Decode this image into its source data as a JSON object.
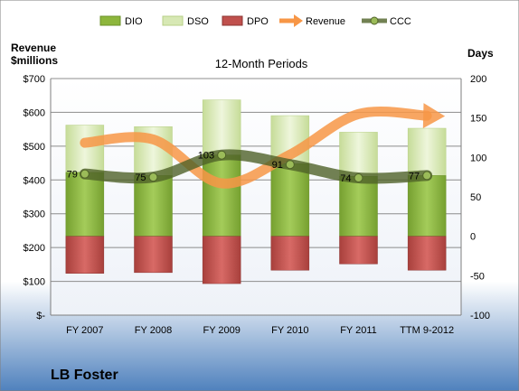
{
  "chart_data": {
    "type": "bar",
    "title": "12-Month Periods",
    "company": "LB Foster",
    "categories": [
      "FY 2007",
      "FY 2008",
      "FY 2009",
      "FY 2010",
      "FY 2011",
      "TTM 9-2012"
    ],
    "left_axis": {
      "label_line1": "Revenue",
      "label_line2": "$millions",
      "range": [
        0,
        700
      ],
      "ticks": [
        "$-",
        "$100",
        "$200",
        "$300",
        "$400",
        "$500",
        "$600",
        "$700"
      ]
    },
    "right_axis": {
      "label": "Days",
      "range": [
        -100,
        200
      ],
      "ticks": [
        "-100",
        "-50",
        "0",
        "50",
        "100",
        "150",
        "200"
      ]
    },
    "series": [
      {
        "name": "DIO",
        "axis": "days",
        "values": [
          81,
          77,
          103,
          92,
          76,
          77
        ],
        "color": "#8db63c"
      },
      {
        "name": "DSO",
        "axis": "days",
        "values": [
          60,
          62,
          70,
          61,
          56,
          60
        ],
        "color": "#d7e8b4"
      },
      {
        "name": "DPO",
        "axis": "days",
        "values": [
          -47,
          -46,
          -60,
          -43,
          -35,
          -43
        ],
        "color": "#c0504d"
      },
      {
        "name": "Revenue",
        "axis": "revenue",
        "values": [
          510,
          520,
          390,
          475,
          595,
          590
        ],
        "color": "#f79646"
      },
      {
        "name": "CCC",
        "axis": "days",
        "values": [
          79,
          75,
          103,
          91,
          74,
          77
        ],
        "color": "#4f6228"
      }
    ],
    "ccc_labels": [
      "79",
      "75",
      "103",
      "91",
      "74",
      "77"
    ],
    "grid": true,
    "legend_position": "top"
  }
}
